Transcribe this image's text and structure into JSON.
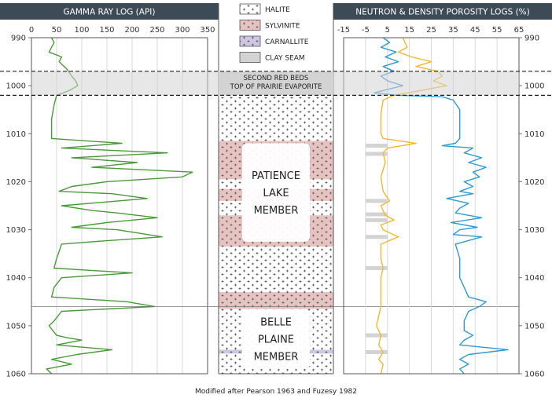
{
  "caption": "Modified after Pearson 1963 and Fuzesy 1982",
  "colors": {
    "header_bg": "#3d4b57",
    "gamma": "#4a9a3a",
    "neutron": "#f5b731",
    "density": "#2e9ad6",
    "sylvinite": "#e6c3c0",
    "carnallite": "#cfc6e3",
    "clay": "#d3d3d3",
    "member_box": "#ffffff"
  },
  "legend": [
    {
      "label": "HALITE",
      "pattern": "halite"
    },
    {
      "label": "SYLVINITE",
      "pattern": "sylvinite"
    },
    {
      "label": "CARNALLITE",
      "pattern": "carnallite"
    },
    {
      "label": "CLAY SEAM",
      "pattern": "clay"
    }
  ],
  "lithology": {
    "layers": [
      {
        "type": "sylvinite",
        "top": 1011.5,
        "bottom": 1019.5
      },
      {
        "type": "sylvinite",
        "top": 1021.5,
        "bottom": 1024.0
      },
      {
        "type": "sylvinite",
        "top": 1027.0,
        "bottom": 1033.5
      },
      {
        "type": "sylvinite",
        "top": 1043.0,
        "bottom": 1046.5
      },
      {
        "type": "carnallite",
        "top": 1055.0,
        "bottom": 1055.8
      }
    ],
    "clay_band": {
      "top": 997.0,
      "bottom": 1002.0
    },
    "members": [
      {
        "lines": [
          "PATIENCE",
          "LAKE",
          "MEMBER"
        ],
        "top": 1012.0,
        "bottom": 1032.5
      },
      {
        "lines": [
          "BELLE",
          "PLAINE",
          "MEMBER"
        ],
        "top": 1046.5,
        "bottom": 1059.0
      }
    ],
    "boundary_label": [
      "SECOND RED BEDS",
      "TOP OF PRAIRIE EVAPORITE"
    ],
    "boundary_depth": 1046.0
  },
  "chart_data": [
    {
      "type": "line",
      "title": "GAMMA RAY LOG (API)",
      "xlim": [
        0,
        350
      ],
      "x_ticks": [
        0,
        50,
        100,
        150,
        200,
        250,
        300,
        350
      ],
      "ylim": [
        990,
        1060
      ],
      "y_ticks": [
        990,
        1000,
        1010,
        1020,
        1030,
        1040,
        1050,
        1060
      ],
      "y_inverted": true,
      "grid": true,
      "series": [
        {
          "color_key": "gamma",
          "points": [
            [
              40,
              990
            ],
            [
              45,
              991
            ],
            [
              35,
              993
            ],
            [
              60,
              994
            ],
            [
              55,
              995
            ],
            [
              70,
              996.5
            ],
            [
              80,
              998
            ],
            [
              88,
              999
            ],
            [
              92,
              1000
            ],
            [
              75,
              1001
            ],
            [
              50,
              1002
            ],
            [
              45,
              1004
            ],
            [
              40,
              1007
            ],
            [
              40,
              1011
            ],
            [
              180,
              1012
            ],
            [
              60,
              1013
            ],
            [
              270,
              1014
            ],
            [
              80,
              1015
            ],
            [
              210,
              1016
            ],
            [
              120,
              1017
            ],
            [
              320,
              1018
            ],
            [
              300,
              1019
            ],
            [
              150,
              1020
            ],
            [
              80,
              1021
            ],
            [
              55,
              1022
            ],
            [
              160,
              1022.5
            ],
            [
              230,
              1023.5
            ],
            [
              60,
              1025
            ],
            [
              120,
              1026
            ],
            [
              170,
              1026.5
            ],
            [
              250,
              1027.5
            ],
            [
              150,
              1028.5
            ],
            [
              80,
              1029.5
            ],
            [
              170,
              1030
            ],
            [
              260,
              1031.5
            ],
            [
              120,
              1032.5
            ],
            [
              60,
              1033
            ],
            [
              50,
              1036
            ],
            [
              45,
              1038
            ],
            [
              200,
              1039
            ],
            [
              60,
              1040
            ],
            [
              45,
              1042
            ],
            [
              40,
              1044
            ],
            [
              190,
              1045
            ],
            [
              245,
              1046
            ],
            [
              60,
              1047
            ],
            [
              45,
              1049
            ],
            [
              35,
              1050
            ],
            [
              50,
              1052
            ],
            [
              70,
              1052.5
            ],
            [
              100,
              1053
            ],
            [
              50,
              1054
            ],
            [
              160,
              1055
            ],
            [
              90,
              1056
            ],
            [
              40,
              1057
            ],
            [
              80,
              1058
            ],
            [
              30,
              1059
            ],
            [
              40,
              1060
            ]
          ]
        }
      ]
    },
    {
      "type": "line",
      "title": "NEUTRON & DENSITY POROSITY LOGS (%)",
      "xlim": [
        -15,
        65
      ],
      "x_ticks": [
        -15,
        -5,
        5,
        15,
        25,
        35,
        45,
        55,
        65
      ],
      "ylim": [
        990,
        1060
      ],
      "y_ticks": [
        990,
        1000,
        1010,
        1020,
        1030,
        1040,
        1050,
        1060
      ],
      "y_inverted": true,
      "grid": true,
      "clay_seams": [
        1012.5,
        1014.2,
        1024.0,
        1026.8,
        1028.0,
        1031.5,
        1038.0,
        1052.0,
        1055.5
      ],
      "series": [
        {
          "name": "",
          "color_key": "neutron",
          "points": [
            [
              12,
              990
            ],
            [
              14,
              992
            ],
            [
              10,
              993
            ],
            [
              16,
              994
            ],
            [
              25,
              995
            ],
            [
              18,
              996
            ],
            [
              28,
              997
            ],
            [
              30,
              998
            ],
            [
              26,
              999
            ],
            [
              32,
              1000
            ],
            [
              20,
              1001
            ],
            [
              8,
              1002
            ],
            [
              3,
              1003
            ],
            [
              2,
              1006
            ],
            [
              2,
              1010
            ],
            [
              3,
              1011
            ],
            [
              18,
              1012
            ],
            [
              5,
              1013
            ],
            [
              3,
              1014
            ],
            [
              4,
              1016
            ],
            [
              2,
              1019
            ],
            [
              3,
              1022
            ],
            [
              6,
              1024
            ],
            [
              2,
              1025
            ],
            [
              4,
              1027
            ],
            [
              8,
              1028
            ],
            [
              2,
              1029
            ],
            [
              3,
              1030
            ],
            [
              10,
              1031.5
            ],
            [
              2,
              1033
            ],
            [
              2,
              1036
            ],
            [
              3,
              1038
            ],
            [
              2,
              1040
            ],
            [
              2,
              1044
            ],
            [
              2,
              1046
            ],
            [
              1,
              1048
            ],
            [
              0,
              1050
            ],
            [
              2,
              1052
            ],
            [
              1,
              1054
            ],
            [
              3,
              1055.5
            ],
            [
              1,
              1057
            ],
            [
              3,
              1058
            ],
            [
              2,
              1060
            ]
          ]
        },
        {
          "name": "",
          "color_key": "density",
          "points": [
            [
              3,
              990
            ],
            [
              6,
              991
            ],
            [
              2,
              992
            ],
            [
              9,
              993
            ],
            [
              4,
              994
            ],
            [
              10,
              995
            ],
            [
              3,
              996
            ],
            [
              8,
              997
            ],
            [
              2,
              998
            ],
            [
              5,
              999
            ],
            [
              12,
              1000
            ],
            [
              3,
              1001
            ],
            [
              -1,
              1001.5
            ],
            [
              10,
              1002
            ],
            [
              30,
              1002.3
            ],
            [
              35,
              1003
            ],
            [
              38,
              1005
            ],
            [
              38,
              1008
            ],
            [
              38,
              1011
            ],
            [
              36,
              1012
            ],
            [
              30,
              1012.5
            ],
            [
              44,
              1013
            ],
            [
              40,
              1014
            ],
            [
              48,
              1015
            ],
            [
              42,
              1016
            ],
            [
              50,
              1017
            ],
            [
              44,
              1018
            ],
            [
              47,
              1019
            ],
            [
              40,
              1020
            ],
            [
              44,
              1021
            ],
            [
              38,
              1022
            ],
            [
              44,
              1022.5
            ],
            [
              32,
              1023.5
            ],
            [
              42,
              1024.5
            ],
            [
              38,
              1025.5
            ],
            [
              36,
              1026.5
            ],
            [
              48,
              1027.5
            ],
            [
              34,
              1028.5
            ],
            [
              46,
              1029.5
            ],
            [
              38,
              1030
            ],
            [
              35,
              1031
            ],
            [
              48,
              1031.5
            ],
            [
              40,
              1032.5
            ],
            [
              36,
              1033
            ],
            [
              38,
              1036
            ],
            [
              38,
              1038
            ],
            [
              38,
              1040
            ],
            [
              40,
              1042
            ],
            [
              42,
              1044
            ],
            [
              50,
              1045
            ],
            [
              47,
              1046
            ],
            [
              42,
              1047
            ],
            [
              40,
              1049
            ],
            [
              40,
              1051
            ],
            [
              44,
              1052
            ],
            [
              40,
              1053
            ],
            [
              38,
              1054
            ],
            [
              60,
              1055
            ],
            [
              42,
              1056
            ],
            [
              38,
              1057
            ],
            [
              42,
              1058
            ],
            [
              38,
              1059
            ],
            [
              40,
              1060
            ]
          ]
        }
      ]
    }
  ]
}
